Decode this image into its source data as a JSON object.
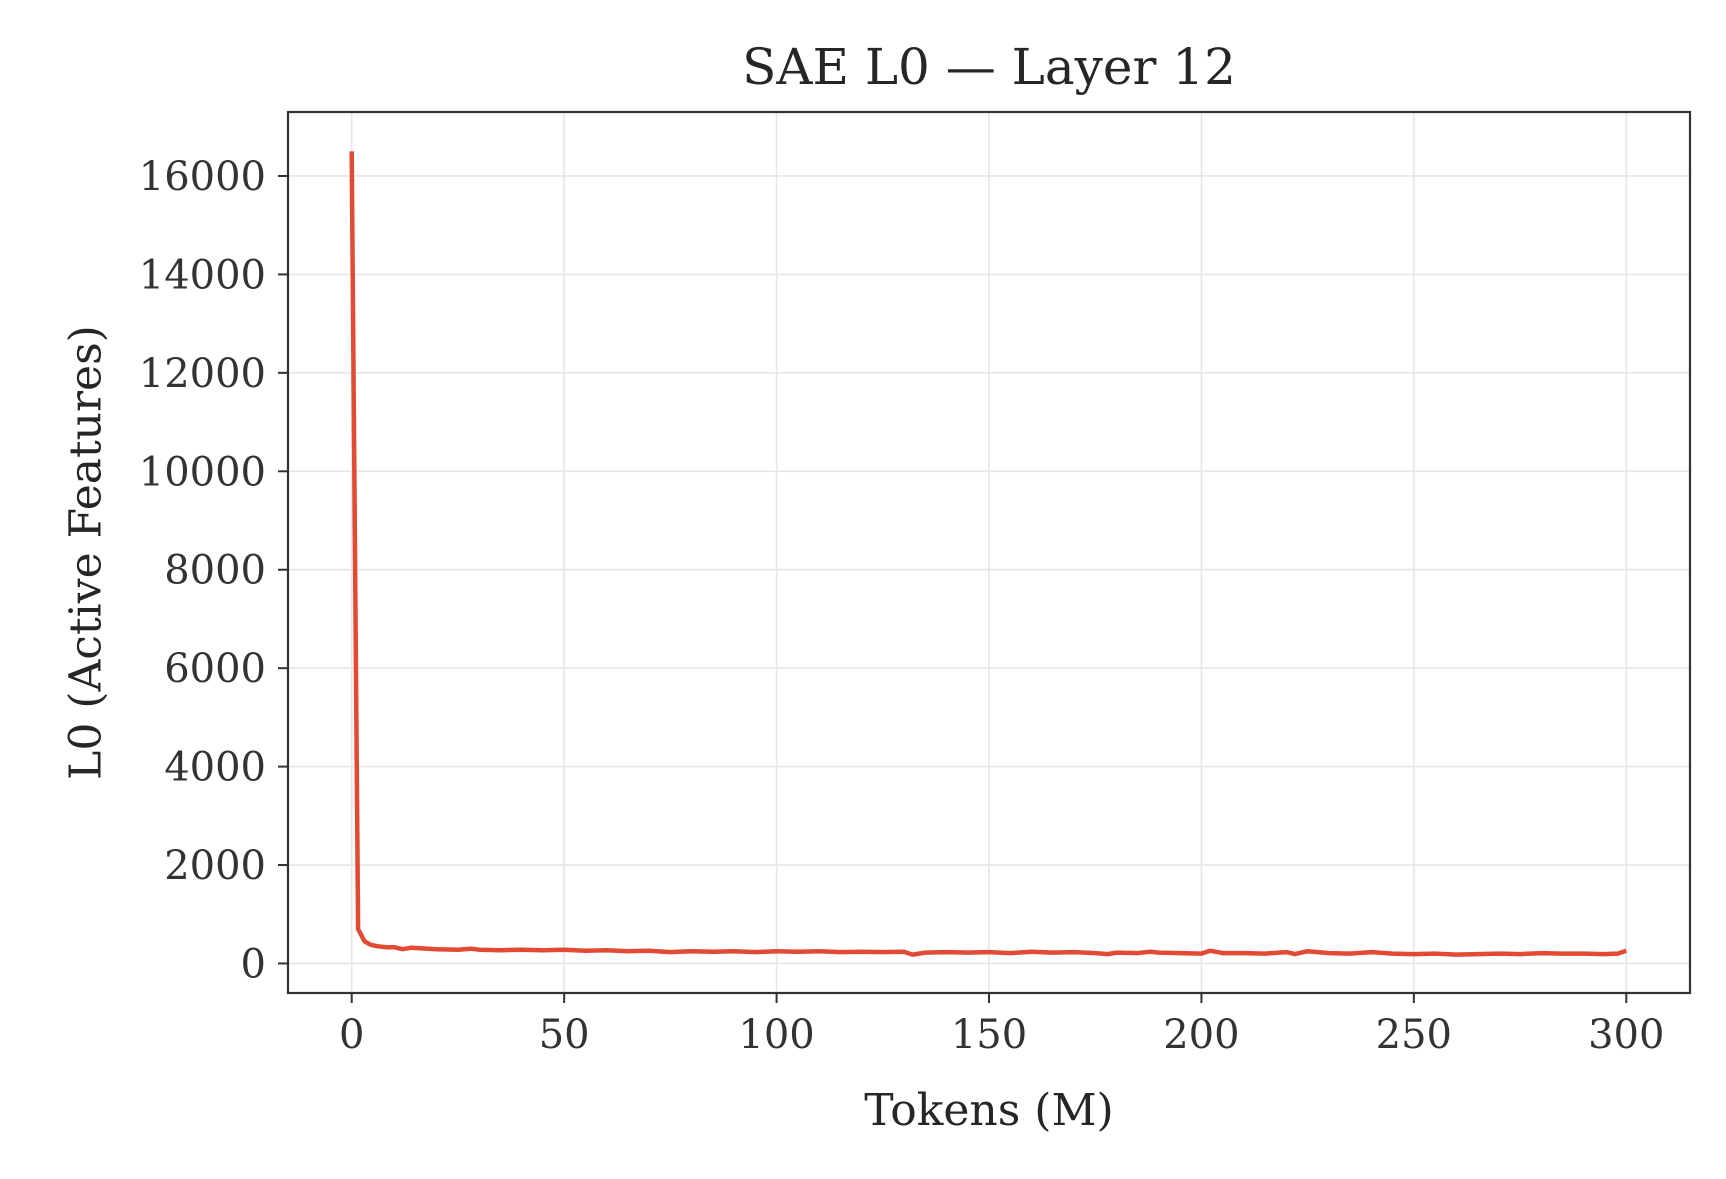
{
  "chart_data": {
    "type": "line",
    "title": "SAE L0 — Layer 12",
    "xlabel": "Tokens (M)",
    "ylabel": "L0 (Active Features)",
    "xlim": [
      -15,
      315
    ],
    "ylim": [
      -600,
      17300
    ],
    "x_ticks": [
      0,
      50,
      100,
      150,
      200,
      250,
      300
    ],
    "y_ticks": [
      0,
      2000,
      4000,
      6000,
      8000,
      10000,
      12000,
      14000,
      16000
    ],
    "x_tick_labels": [
      "0",
      "50",
      "100",
      "150",
      "200",
      "250",
      "300"
    ],
    "y_tick_labels": [
      "0",
      "2000",
      "4000",
      "6000",
      "8000",
      "10000",
      "12000",
      "14000",
      "16000"
    ],
    "grid": true,
    "series": [
      {
        "color": "#e24a33",
        "x": [
          0,
          1.5,
          3,
          4.5,
          6,
          8,
          10,
          12,
          14,
          16,
          20,
          25,
          28,
          30,
          35,
          40,
          45,
          50,
          55,
          60,
          65,
          70,
          75,
          80,
          85,
          90,
          95,
          100,
          105,
          110,
          115,
          120,
          125,
          130,
          132,
          135,
          140,
          145,
          150,
          155,
          160,
          165,
          170,
          175,
          178,
          180,
          185,
          188,
          190,
          195,
          200,
          202,
          205,
          210,
          215,
          220,
          222,
          225,
          230,
          235,
          240,
          245,
          250,
          255,
          260,
          265,
          270,
          275,
          280,
          285,
          290,
          295,
          298,
          300
        ],
        "y": [
          16500,
          700,
          450,
          380,
          350,
          330,
          330,
          290,
          320,
          310,
          290,
          280,
          300,
          280,
          270,
          280,
          270,
          280,
          260,
          270,
          250,
          260,
          230,
          250,
          240,
          250,
          230,
          250,
          240,
          250,
          230,
          240,
          230,
          240,
          180,
          220,
          230,
          220,
          230,
          210,
          240,
          220,
          230,
          210,
          190,
          220,
          210,
          240,
          220,
          210,
          200,
          260,
          210,
          210,
          200,
          230,
          190,
          250,
          210,
          200,
          230,
          200,
          190,
          200,
          180,
          190,
          200,
          190,
          210,
          200,
          200,
          190,
          200,
          260
        ]
      }
    ]
  }
}
